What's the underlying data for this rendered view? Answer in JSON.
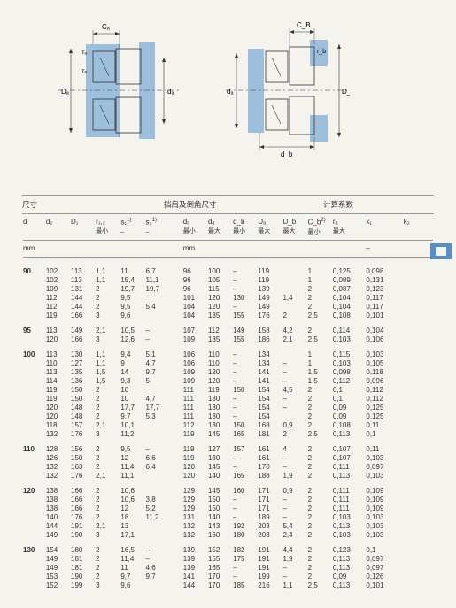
{
  "headings": {
    "dims": "尺寸",
    "shoulder": "挡肩及倒角尺寸",
    "calc": "计算系数"
  },
  "columns": {
    "d": "d",
    "d2": "d₂",
    "D1": "D₁",
    "r12": "r₁,₂",
    "r12_sub": "最小",
    "s1": "s₁",
    "s1_sup": "1)",
    "s2": "s₂",
    "s2_sup": "1)",
    "da": "dₐ",
    "da_sub": "最小",
    "da2": "dₐ",
    "da2_sub": "最大",
    "db": "d_b",
    "db_sub": "最小",
    "Da": "Dₐ",
    "Da_sub": "最大",
    "Db": "D_b",
    "Db_sub": "最大",
    "Cb": "C_b",
    "Cb_sup": "2)",
    "Cb_sub": "最小",
    "ra": "rₐ",
    "ra_sub": "最大",
    "k1": "k₁",
    "k2": "k₂",
    "mm": "mm",
    "dash": "–"
  },
  "labels": {
    "Ca": "Cₐ",
    "Cb": "C_B",
    "ra": "rₐ",
    "rb": "r_b",
    "Da": "Dₐ",
    "da": "dₐ",
    "db": "d_b",
    "Db": "D_b"
  },
  "groups": [
    {
      "d": "90",
      "rows": [
        [
          "102",
          "113",
          "1,1",
          "11",
          "6,7",
          "96",
          "100",
          "–",
          "119",
          "",
          "1",
          "0,125",
          "0,098"
        ],
        [
          "102",
          "113",
          "1,1",
          "15,4",
          "11,1",
          "96",
          "105",
          "–",
          "119",
          "",
          "1",
          "0,089",
          "0,131"
        ],
        [
          "109",
          "131",
          "2",
          "19,7",
          "19,7",
          "96",
          "115",
          "–",
          "139",
          "",
          "2",
          "0,087",
          "0,123"
        ],
        [
          "112",
          "144",
          "2",
          "9,5",
          "",
          "101",
          "120",
          "130",
          "149",
          "1,4",
          "2",
          "0,104",
          "0,117"
        ],
        [
          "112",
          "144",
          "2",
          "9,5",
          "5,4",
          "104",
          "120",
          "–",
          "149",
          "",
          "2",
          "0,104",
          "0,117"
        ],
        [
          "119",
          "166",
          "3",
          "9,6",
          "",
          "104",
          "135",
          "155",
          "176",
          "2",
          "2,5",
          "0,108",
          "0,101"
        ]
      ]
    },
    {
      "d": "95",
      "rows": [
        [
          "113",
          "149",
          "2,1",
          "10,5",
          "–",
          "107",
          "112",
          "149",
          "158",
          "4,2",
          "2",
          "0,114",
          "0,104"
        ],
        [
          "120",
          "166",
          "3",
          "12,6",
          "–",
          "109",
          "135",
          "155",
          "186",
          "2,1",
          "2,5",
          "0,103",
          "0,106"
        ]
      ]
    },
    {
      "d": "100",
      "rows": [
        [
          "113",
          "130",
          "1,1",
          "9,4",
          "5,1",
          "106",
          "110",
          "–",
          "134",
          "",
          "1",
          "0,115",
          "0,103"
        ],
        [
          "110",
          "127",
          "1,1",
          "9",
          "4,7",
          "106",
          "110",
          "–",
          "134",
          "–",
          "1",
          "0,103",
          "0,105"
        ],
        [
          "113",
          "135",
          "1,5",
          "14",
          "9,7",
          "109",
          "120",
          "–",
          "141",
          "–",
          "1,5",
          "0,098",
          "0,118"
        ],
        [
          "114",
          "136",
          "1,5",
          "9,3",
          "5",
          "109",
          "120",
          "–",
          "141",
          "–",
          "1,5",
          "0,112",
          "0,096"
        ],
        [
          "",
          "",
          "",
          "",
          "",
          "",
          "",
          "",
          "",
          "",
          "",
          "",
          ""
        ],
        [
          "119",
          "150",
          "2",
          "10",
          "",
          "111",
          "119",
          "150",
          "154",
          "4,5",
          "2",
          "0,1",
          "0,112"
        ],
        [
          "119",
          "150",
          "2",
          "10",
          "4,7",
          "111",
          "130",
          "–",
          "154",
          "–",
          "2",
          "0,1",
          "0,112"
        ],
        [
          "120",
          "148",
          "2",
          "17,7",
          "17,7",
          "111",
          "130",
          "–",
          "154",
          "–",
          "2",
          "0,09",
          "0,125"
        ],
        [
          "120",
          "148",
          "2",
          "9,7",
          "5,3",
          "111",
          "130",
          "–",
          "154",
          "",
          "2",
          "0,09",
          "0,125"
        ],
        [
          "118",
          "157",
          "2,1",
          "10,1",
          "",
          "112",
          "130",
          "150",
          "168",
          "0,9",
          "2",
          "0,108",
          "0,11"
        ],
        [
          "132",
          "176",
          "3",
          "11,2",
          "",
          "119",
          "145",
          "165",
          "181",
          "2",
          "2,5",
          "0,113",
          "0,1"
        ]
      ]
    },
    {
      "d": "110",
      "rows": [
        [
          "128",
          "156",
          "2",
          "9,5",
          "–",
          "119",
          "127",
          "157",
          "161",
          "4",
          "2",
          "0,107",
          "0,11"
        ],
        [
          "126",
          "150",
          "2",
          "12",
          "6,6",
          "119",
          "130",
          "–",
          "161",
          "–",
          "2",
          "0,107",
          "0,103"
        ],
        [
          "132",
          "163",
          "2",
          "11,4",
          "6,4",
          "120",
          "145",
          "–",
          "170",
          "–",
          "2",
          "0,111",
          "0,097"
        ],
        [
          "132",
          "176",
          "2,1",
          "11,1",
          "",
          "120",
          "140",
          "165",
          "188",
          "1,9",
          "2",
          "0,113",
          "0,103"
        ]
      ]
    },
    {
      "d": "120",
      "rows": [
        [
          "138",
          "166",
          "2",
          "10,6",
          "",
          "129",
          "145",
          "160",
          "171",
          "0,9",
          "2",
          "0,111",
          "0,109"
        ],
        [
          "138",
          "166",
          "2",
          "10,6",
          "3,8",
          "129",
          "150",
          "–",
          "171",
          "–",
          "2",
          "0,111",
          "0,109"
        ],
        [
          "138",
          "166",
          "2",
          "12",
          "5,2",
          "129",
          "150",
          "–",
          "171",
          "–",
          "2",
          "0,111",
          "0,109"
        ],
        [
          "140",
          "176",
          "2",
          "18",
          "11,2",
          "131",
          "140",
          "–",
          "189",
          "–",
          "2",
          "0,103",
          "0,103"
        ],
        [
          "144",
          "191",
          "2,1",
          "13",
          "",
          "132",
          "143",
          "192",
          "203",
          "5,4",
          "2",
          "0,113",
          "0,103"
        ],
        [
          "149",
          "190",
          "3",
          "17,1",
          "",
          "132",
          "160",
          "180",
          "203",
          "2,4",
          "2",
          "0,103",
          "0,103"
        ]
      ]
    },
    {
      "d": "130",
      "rows": [
        [
          "154",
          "180",
          "2",
          "16,5",
          "–",
          "139",
          "152",
          "182",
          "191",
          "4,4",
          "2",
          "0,123",
          "0,1"
        ],
        [
          "149",
          "181",
          "2",
          "11,4",
          "–",
          "139",
          "155",
          "175",
          "191",
          "1,9",
          "2",
          "0,113",
          "0,097"
        ],
        [
          "149",
          "181",
          "2",
          "11",
          "4,6",
          "139",
          "165",
          "–",
          "191",
          "–",
          "2",
          "0,113",
          "0,097"
        ],
        [
          "153",
          "190",
          "2",
          "9,7",
          "9,7",
          "141",
          "170",
          "–",
          "199",
          "–",
          "2",
          "0,09",
          "0,126"
        ],
        [
          "152",
          "199",
          "3",
          "9,6",
          "",
          "144",
          "170",
          "185",
          "216",
          "1,1",
          "2,5",
          "0,113",
          "0,101"
        ]
      ]
    }
  ]
}
